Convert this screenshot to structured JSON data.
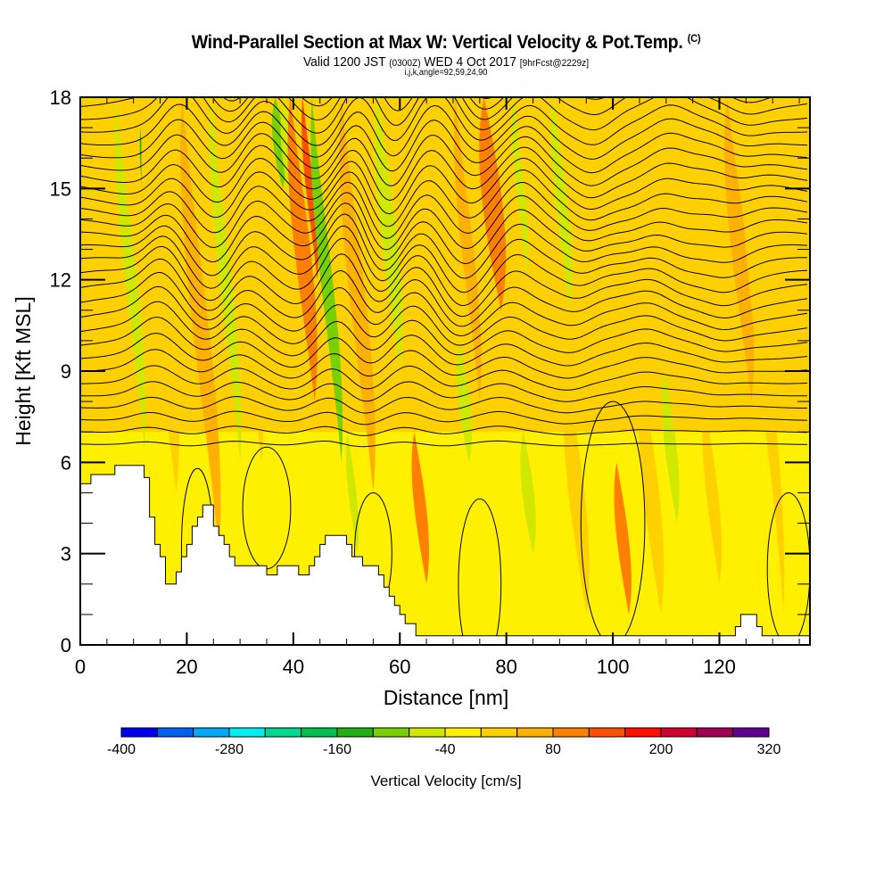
{
  "header": {
    "title": "Wind-Parallel Section at Max W: Vertical Velocity & Pot.Temp.",
    "copyright": "(C)",
    "valid_prefix": "Valid 1200 JST",
    "valid_utc": "(0300Z)",
    "valid_date": "WED 4 Oct 2017",
    "forecast": "[9hrFcst@2229z]",
    "grid_info": "i,j,k,angle=92,59,24,90"
  },
  "chart_data": {
    "type": "heatmap",
    "title": "Wind-Parallel Section at Max W: Vertical Velocity & Pot.Temp.",
    "xlabel": "Distance [nm]",
    "ylabel": "Height [Kft MSL]",
    "xlim": [
      0,
      137
    ],
    "ylim": [
      0,
      18
    ],
    "xticks": [
      0,
      20,
      40,
      60,
      80,
      100,
      120
    ],
    "xtick_labels": [
      "0",
      "20",
      "40",
      "60",
      "80",
      "100",
      "120"
    ],
    "yticks": [
      0,
      3,
      6,
      9,
      12,
      15,
      18
    ],
    "ytick_labels": [
      "0",
      "3",
      "6",
      "9",
      "12",
      "15",
      "18"
    ],
    "background_value_cm_s": 0,
    "colorbar": {
      "title": "Vertical Velocity [cm/s]",
      "bounds": [
        -400,
        -360,
        -320,
        -280,
        -240,
        -200,
        -160,
        -120,
        -80,
        -40,
        0,
        40,
        80,
        120,
        160,
        200,
        240,
        280,
        320
      ],
      "tick_labels": [
        "-400",
        "-280",
        "-160",
        "-40",
        "80",
        "200",
        "320"
      ],
      "tick_values": [
        -400,
        -280,
        -160,
        -40,
        80,
        200,
        320
      ],
      "colors": [
        "#0000f0",
        "#0060f0",
        "#00a8f8",
        "#00f0f0",
        "#00d890",
        "#00c050",
        "#20b010",
        "#78d000",
        "#d0e800",
        "#fff000",
        "#ffd000",
        "#ffb000",
        "#ff8000",
        "#ff5000",
        "#ff1000",
        "#d00030",
        "#a00050",
        "#600090"
      ]
    },
    "velocity_streaks": [
      {
        "x": 3,
        "width": 6,
        "y0": 9,
        "y1": 18,
        "value": 20
      },
      {
        "x": 12,
        "width": 3,
        "y0": 6.5,
        "y1": 18,
        "value": -60
      },
      {
        "x": 14,
        "width": 1.2,
        "y0": 11,
        "y1": 17,
        "value": -140
      },
      {
        "x": 18,
        "width": 5,
        "y0": 5,
        "y1": 18,
        "value": 20
      },
      {
        "x": 26,
        "width": 4,
        "y0": 3,
        "y1": 18,
        "value": 50
      },
      {
        "x": 30,
        "width": 3,
        "y0": 6,
        "y1": 18,
        "value": -60
      },
      {
        "x": 34,
        "width": 4,
        "y0": 6,
        "y1": 18,
        "value": 30
      },
      {
        "x": 38,
        "width": 3,
        "y0": 15,
        "y1": 18,
        "value": -120
      },
      {
        "x": 40,
        "width": 3,
        "y0": 14,
        "y1": 18,
        "value": -60
      },
      {
        "x": 44,
        "width": 4,
        "y0": 8,
        "y1": 18,
        "value": 110
      },
      {
        "x": 44.5,
        "width": 2,
        "y0": 12,
        "y1": 18,
        "value": 150
      },
      {
        "x": 49,
        "width": 3,
        "y0": 6,
        "y1": 18,
        "value": -120
      },
      {
        "x": 52,
        "width": 2,
        "y0": 3,
        "y1": 7,
        "value": -60
      },
      {
        "x": 55,
        "width": 4,
        "y0": 5,
        "y1": 18,
        "value": 60
      },
      {
        "x": 60,
        "width": 4,
        "y0": 9,
        "y1": 18,
        "value": -60
      },
      {
        "x": 65,
        "width": 3,
        "y0": 2,
        "y1": 7,
        "value": 90
      },
      {
        "x": 66,
        "width": 3,
        "y0": 9,
        "y1": 18,
        "value": 30
      },
      {
        "x": 73,
        "width": 3,
        "y0": 6,
        "y1": 10,
        "value": -60
      },
      {
        "x": 75,
        "width": 3,
        "y0": 8,
        "y1": 18,
        "value": 60
      },
      {
        "x": 79,
        "width": 5,
        "y0": 11,
        "y1": 18,
        "value": 110
      },
      {
        "x": 84,
        "width": 2,
        "y0": 12,
        "y1": 18,
        "value": -60
      },
      {
        "x": 85,
        "width": 3,
        "y0": 3,
        "y1": 7,
        "value": -60
      },
      {
        "x": 92,
        "width": 3,
        "y0": 11,
        "y1": 18,
        "value": -60
      },
      {
        "x": 95,
        "width": 4,
        "y0": 1,
        "y1": 9,
        "value": 30
      },
      {
        "x": 103,
        "width": 3,
        "y0": 1,
        "y1": 6,
        "value": 80
      },
      {
        "x": 109,
        "width": 4,
        "y0": 1,
        "y1": 9,
        "value": 30
      },
      {
        "x": 112,
        "width": 3,
        "y0": 4,
        "y1": 9,
        "value": -60
      },
      {
        "x": 120,
        "width": 3,
        "y0": 2,
        "y1": 8,
        "value": 30
      },
      {
        "x": 126,
        "width": 4,
        "y0": 8,
        "y1": 18,
        "value": 40
      },
      {
        "x": 132,
        "width": 3,
        "y0": 1,
        "y1": 18,
        "value": 30
      }
    ],
    "terrain_kft": [
      [
        0,
        5.3
      ],
      [
        2,
        5.3
      ],
      [
        2,
        5.6
      ],
      [
        6.5,
        5.6
      ],
      [
        6.5,
        5.9
      ],
      [
        12,
        5.9
      ],
      [
        12,
        5.5
      ],
      [
        13,
        5.5
      ],
      [
        13,
        4.2
      ],
      [
        14,
        4.2
      ],
      [
        14,
        3.3
      ],
      [
        15,
        3.3
      ],
      [
        15,
        2.9
      ],
      [
        16,
        2.9
      ],
      [
        16,
        2.0
      ],
      [
        18,
        2.0
      ],
      [
        18,
        2.4
      ],
      [
        19,
        2.4
      ],
      [
        19,
        2.9
      ],
      [
        20,
        2.9
      ],
      [
        20,
        3.3
      ],
      [
        21,
        3.3
      ],
      [
        21,
        3.9
      ],
      [
        22,
        3.9
      ],
      [
        22,
        4.2
      ],
      [
        23,
        4.2
      ],
      [
        23,
        4.6
      ],
      [
        25,
        4.6
      ],
      [
        25,
        3.9
      ],
      [
        26,
        3.9
      ],
      [
        26,
        3.6
      ],
      [
        27,
        3.6
      ],
      [
        27,
        3.3
      ],
      [
        28,
        3.3
      ],
      [
        28,
        2.9
      ],
      [
        29,
        2.9
      ],
      [
        29,
        2.6
      ],
      [
        35,
        2.6
      ],
      [
        35,
        2.3
      ],
      [
        37,
        2.3
      ],
      [
        37,
        2.6
      ],
      [
        41,
        2.6
      ],
      [
        41,
        2.3
      ],
      [
        43,
        2.3
      ],
      [
        43,
        2.6
      ],
      [
        44,
        2.6
      ],
      [
        44,
        2.9
      ],
      [
        45,
        2.9
      ],
      [
        45,
        3.3
      ],
      [
        46,
        3.3
      ],
      [
        46,
        3.6
      ],
      [
        50,
        3.6
      ],
      [
        50,
        3.3
      ],
      [
        51,
        3.3
      ],
      [
        51,
        2.9
      ],
      [
        53,
        2.9
      ],
      [
        53,
        2.6
      ],
      [
        56,
        2.6
      ],
      [
        56,
        2.3
      ],
      [
        57,
        2.3
      ],
      [
        57,
        1.9
      ],
      [
        58,
        1.9
      ],
      [
        58,
        1.6
      ],
      [
        59,
        1.6
      ],
      [
        59,
        1.3
      ],
      [
        60,
        1.3
      ],
      [
        60,
        1.0
      ],
      [
        61,
        1.0
      ],
      [
        61,
        0.7
      ],
      [
        63,
        0.7
      ],
      [
        63,
        0.3
      ],
      [
        70,
        0.3
      ],
      [
        70,
        0.3
      ],
      [
        123,
        0.3
      ],
      [
        123,
        0.6
      ],
      [
        124,
        0.6
      ],
      [
        124,
        1.0
      ],
      [
        127,
        1.0
      ],
      [
        127,
        0.6
      ],
      [
        128,
        0.6
      ],
      [
        128,
        0.3
      ],
      [
        137,
        0.3
      ]
    ],
    "contour_field": "potential temperature (isentropes, black lines, labels unreadable at screen resolution)"
  }
}
